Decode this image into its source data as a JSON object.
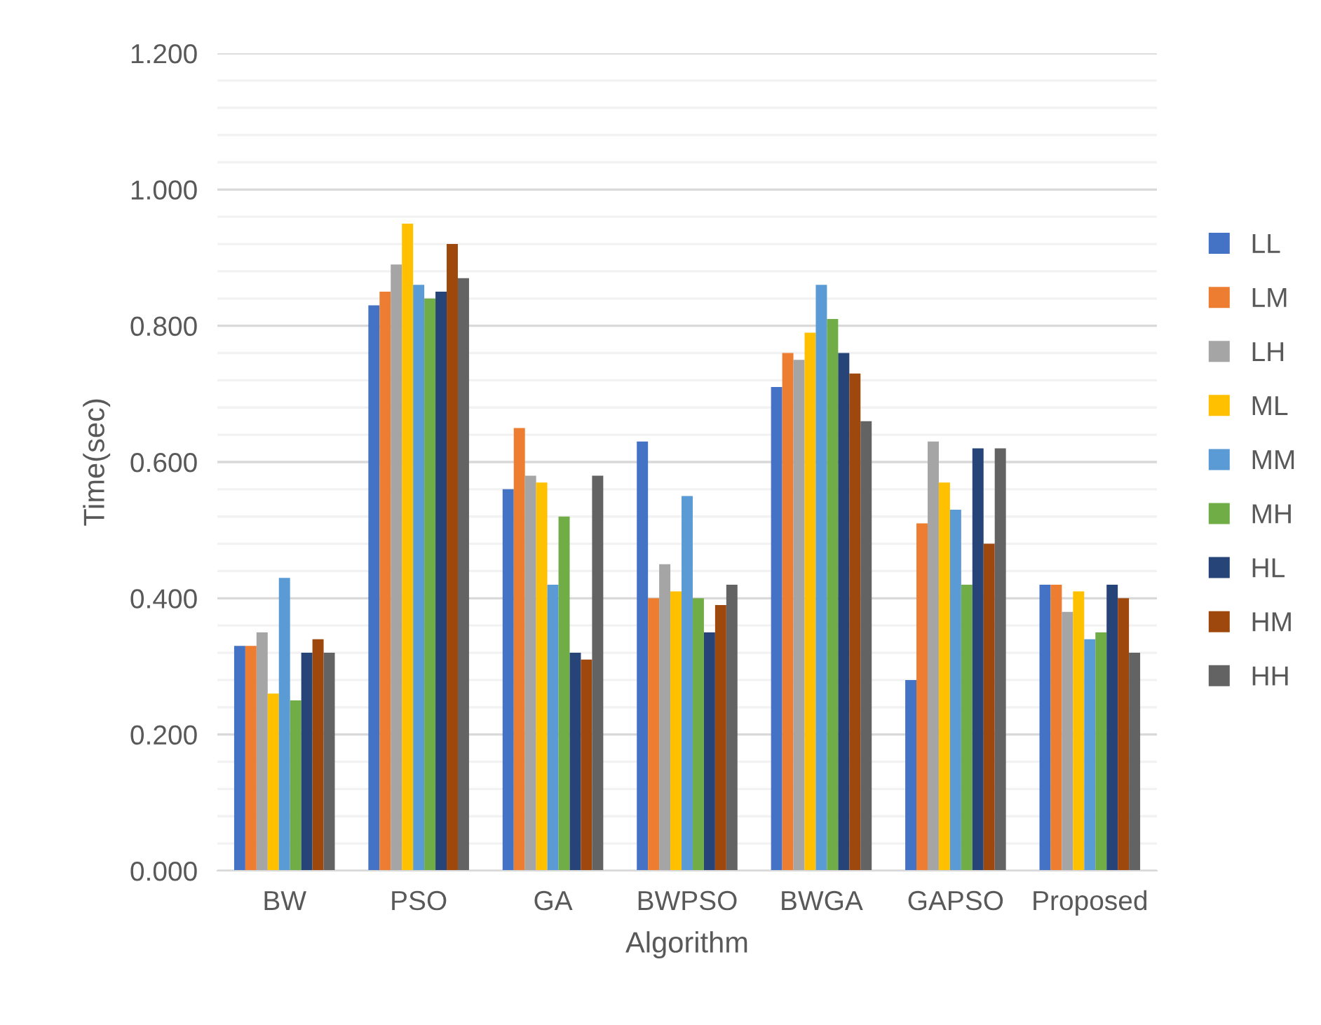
{
  "chart_data": {
    "type": "bar",
    "xlabel": "Algorithm",
    "ylabel": "Time(sec)",
    "categories": [
      "BW",
      "PSO",
      "GA",
      "BWPSO",
      "BWGA",
      "GAPSO",
      "Proposed"
    ],
    "series": [
      {
        "name": "LL",
        "color": "#4472c4",
        "values": [
          0.33,
          0.83,
          0.56,
          0.63,
          0.71,
          0.28,
          0.42
        ]
      },
      {
        "name": "LM",
        "color": "#ed7d31",
        "values": [
          0.33,
          0.85,
          0.65,
          0.4,
          0.76,
          0.51,
          0.42
        ]
      },
      {
        "name": "LH",
        "color": "#a5a5a5",
        "values": [
          0.35,
          0.89,
          0.58,
          0.45,
          0.75,
          0.63,
          0.38
        ]
      },
      {
        "name": "ML",
        "color": "#ffc000",
        "values": [
          0.26,
          0.95,
          0.57,
          0.41,
          0.79,
          0.57,
          0.41
        ]
      },
      {
        "name": "MM",
        "color": "#5b9bd5",
        "values": [
          0.43,
          0.86,
          0.42,
          0.55,
          0.86,
          0.53,
          0.34
        ]
      },
      {
        "name": "MH",
        "color": "#70ad47",
        "values": [
          0.25,
          0.84,
          0.52,
          0.4,
          0.81,
          0.42,
          0.35
        ]
      },
      {
        "name": "HL",
        "color": "#264478",
        "values": [
          0.32,
          0.85,
          0.32,
          0.35,
          0.76,
          0.62,
          0.42
        ]
      },
      {
        "name": "HM",
        "color": "#9e480e",
        "values": [
          0.34,
          0.92,
          0.31,
          0.39,
          0.73,
          0.48,
          0.4
        ]
      },
      {
        "name": "HH",
        "color": "#636363",
        "values": [
          0.32,
          0.87,
          0.58,
          0.42,
          0.66,
          0.62,
          0.32
        ]
      }
    ],
    "ylim": [
      0,
      1.2
    ],
    "yticks": [
      {
        "value": 0,
        "label": "0.000"
      },
      {
        "value": 0.04,
        "label": null
      },
      {
        "value": 0.08,
        "label": null
      },
      {
        "value": 0.12,
        "label": null
      },
      {
        "value": 0.16,
        "label": null
      },
      {
        "value": 0.2,
        "label": "0.200"
      },
      {
        "value": 0.24,
        "label": null
      },
      {
        "value": 0.28,
        "label": null
      },
      {
        "value": 0.32,
        "label": null
      },
      {
        "value": 0.36,
        "label": null
      },
      {
        "value": 0.4,
        "label": "0.400"
      },
      {
        "value": 0.44,
        "label": null
      },
      {
        "value": 0.48,
        "label": null
      },
      {
        "value": 0.52,
        "label": null
      },
      {
        "value": 0.56,
        "label": null
      },
      {
        "value": 0.6,
        "label": "0.600"
      },
      {
        "value": 0.64,
        "label": null
      },
      {
        "value": 0.68,
        "label": null
      },
      {
        "value": 0.72,
        "label": null
      },
      {
        "value": 0.76,
        "label": null
      },
      {
        "value": 0.8,
        "label": "0.800"
      },
      {
        "value": 0.84,
        "label": null
      },
      {
        "value": 0.88,
        "label": null
      },
      {
        "value": 0.92,
        "label": null
      },
      {
        "value": 0.96,
        "label": null
      },
      {
        "value": 1.0,
        "label": "1.000"
      },
      {
        "value": 1.04,
        "label": null
      },
      {
        "value": 1.08,
        "label": null
      },
      {
        "value": 1.12,
        "label": null
      },
      {
        "value": 1.16,
        "label": null
      },
      {
        "value": 1.2,
        "label": "1.200"
      }
    ],
    "grid": "y",
    "legend": "right"
  }
}
